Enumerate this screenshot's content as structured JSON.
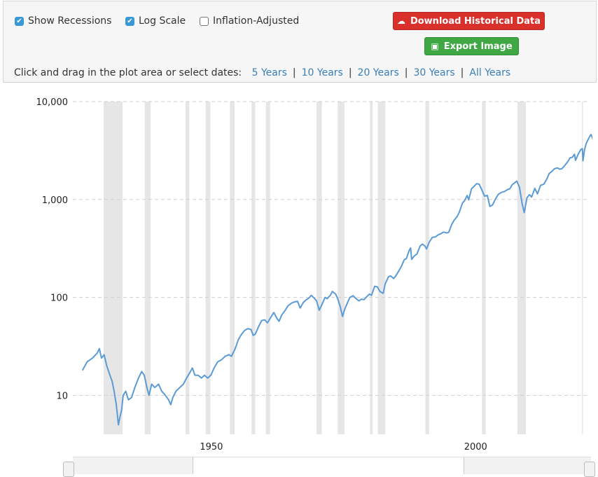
{
  "controls": {
    "show_recessions": {
      "label": "Show Recessions",
      "checked": true
    },
    "log_scale": {
      "label": "Log Scale",
      "checked": true
    },
    "inflation_adjusted": {
      "label": "Inflation-Adjusted",
      "checked": false
    },
    "download_label": "Download Historical Data",
    "export_label": "Export Image",
    "instruction": "Click and drag in the plot area or select dates:",
    "ranges": [
      "5 Years",
      "10 Years",
      "20 Years",
      "30 Years",
      "All Years"
    ],
    "colors": {
      "download": "#d9302c",
      "export": "#3fa845",
      "link": "#3a7fb8",
      "checkbox": "#3b98d6"
    }
  },
  "chart_data": {
    "type": "line",
    "title": "",
    "xlabel": "",
    "ylabel": "",
    "y_scale": "log",
    "ylim": [
      4,
      10000
    ],
    "xlim": [
      1925.5,
      2021.3
    ],
    "y_ticks": [
      10,
      100,
      1000,
      10000
    ],
    "y_tick_labels": [
      "10",
      "100",
      "1,000",
      "10,000"
    ],
    "x_ticks": [
      1950,
      2000
    ],
    "x_tick_labels": [
      "1950",
      "2000"
    ],
    "grid": true,
    "series_color": "#5b9bd5",
    "recession_color": "#e6e6e6",
    "recessions": [
      [
        1929.6,
        1933.2
      ],
      [
        1937.4,
        1938.5
      ],
      [
        1945.1,
        1945.8
      ],
      [
        1948.9,
        1949.8
      ],
      [
        1953.5,
        1954.4
      ],
      [
        1957.6,
        1958.3
      ],
      [
        1960.3,
        1961.1
      ],
      [
        1969.9,
        1970.9
      ],
      [
        1973.9,
        1975.2
      ],
      [
        1980.0,
        1980.5
      ],
      [
        1981.5,
        1982.9
      ],
      [
        1990.5,
        1991.2
      ],
      [
        2001.2,
        2001.9
      ],
      [
        2007.9,
        2009.5
      ],
      [
        2020.1,
        2020.3
      ]
    ],
    "series": [
      {
        "values": [
          [
            1925.6,
            18
          ],
          [
            1926.5,
            22
          ],
          [
            1927.5,
            24
          ],
          [
            1928.4,
            27
          ],
          [
            1928.8,
            30
          ],
          [
            1929.2,
            24
          ],
          [
            1929.7,
            26
          ],
          [
            1930.2,
            20
          ],
          [
            1930.8,
            16
          ],
          [
            1931.2,
            14
          ],
          [
            1931.6,
            11
          ],
          [
            1932.0,
            8
          ],
          [
            1932.4,
            5
          ],
          [
            1932.7,
            6
          ],
          [
            1933.0,
            7
          ],
          [
            1933.3,
            10
          ],
          [
            1933.8,
            11
          ],
          [
            1934.3,
            9
          ],
          [
            1934.9,
            9.5
          ],
          [
            1935.5,
            12
          ],
          [
            1936.2,
            15
          ],
          [
            1936.8,
            17.5
          ],
          [
            1937.3,
            16
          ],
          [
            1937.8,
            12
          ],
          [
            1938.2,
            10
          ],
          [
            1938.7,
            13
          ],
          [
            1939.3,
            12
          ],
          [
            1940.0,
            13
          ],
          [
            1940.6,
            11
          ],
          [
            1941.3,
            10
          ],
          [
            1941.9,
            9
          ],
          [
            1942.3,
            8
          ],
          [
            1942.7,
            9.5
          ],
          [
            1943.3,
            11
          ],
          [
            1944.0,
            12
          ],
          [
            1944.7,
            13
          ],
          [
            1945.3,
            15
          ],
          [
            1945.9,
            17
          ],
          [
            1946.4,
            19
          ],
          [
            1946.9,
            16
          ],
          [
            1947.5,
            16
          ],
          [
            1948.1,
            15
          ],
          [
            1948.7,
            16
          ],
          [
            1949.3,
            15
          ],
          [
            1949.9,
            16
          ],
          [
            1950.5,
            19
          ],
          [
            1951.2,
            22
          ],
          [
            1951.9,
            23
          ],
          [
            1952.6,
            25
          ],
          [
            1953.3,
            26
          ],
          [
            1953.8,
            25
          ],
          [
            1954.5,
            30
          ],
          [
            1955.1,
            37
          ],
          [
            1955.7,
            42
          ],
          [
            1956.3,
            46
          ],
          [
            1956.9,
            48
          ],
          [
            1957.5,
            47
          ],
          [
            1957.9,
            41
          ],
          [
            1958.3,
            42
          ],
          [
            1958.9,
            50
          ],
          [
            1959.5,
            58
          ],
          [
            1960.1,
            59
          ],
          [
            1960.6,
            55
          ],
          [
            1961.2,
            62
          ],
          [
            1961.8,
            70
          ],
          [
            1962.4,
            61
          ],
          [
            1962.8,
            57
          ],
          [
            1963.3,
            66
          ],
          [
            1963.9,
            73
          ],
          [
            1964.5,
            82
          ],
          [
            1965.1,
            87
          ],
          [
            1965.7,
            90
          ],
          [
            1966.3,
            91
          ],
          [
            1966.8,
            78
          ],
          [
            1967.4,
            89
          ],
          [
            1967.9,
            94
          ],
          [
            1968.5,
            99
          ],
          [
            1968.9,
            105
          ],
          [
            1969.4,
            99
          ],
          [
            1969.9,
            92
          ],
          [
            1970.4,
            74
          ],
          [
            1970.9,
            84
          ],
          [
            1971.5,
            100
          ],
          [
            1971.9,
            97
          ],
          [
            1972.5,
            105
          ],
          [
            1972.9,
            115
          ],
          [
            1973.5,
            108
          ],
          [
            1973.9,
            97
          ],
          [
            1974.4,
            80
          ],
          [
            1974.8,
            64
          ],
          [
            1975.2,
            75
          ],
          [
            1975.7,
            87
          ],
          [
            1976.2,
            100
          ],
          [
            1976.8,
            104
          ],
          [
            1977.3,
            98
          ],
          [
            1977.9,
            92
          ],
          [
            1978.4,
            96
          ],
          [
            1978.9,
            95
          ],
          [
            1979.5,
            103
          ],
          [
            1979.9,
            108
          ],
          [
            1980.3,
            105
          ],
          [
            1980.9,
            130
          ],
          [
            1981.4,
            128
          ],
          [
            1981.9,
            115
          ],
          [
            1982.5,
            110
          ],
          [
            1982.9,
            138
          ],
          [
            1983.5,
            162
          ],
          [
            1983.9,
            166
          ],
          [
            1984.5,
            156
          ],
          [
            1984.9,
            166
          ],
          [
            1985.5,
            188
          ],
          [
            1985.9,
            205
          ],
          [
            1986.5,
            243
          ],
          [
            1986.9,
            250
          ],
          [
            1987.4,
            300
          ],
          [
            1987.7,
            320
          ],
          [
            1987.9,
            245
          ],
          [
            1988.4,
            265
          ],
          [
            1988.9,
            278
          ],
          [
            1989.5,
            335
          ],
          [
            1989.9,
            350
          ],
          [
            1990.4,
            335
          ],
          [
            1990.7,
            312
          ],
          [
            1991.2,
            365
          ],
          [
            1991.8,
            410
          ],
          [
            1992.4,
            415
          ],
          [
            1992.9,
            435
          ],
          [
            1993.5,
            450
          ],
          [
            1993.9,
            465
          ],
          [
            1994.5,
            455
          ],
          [
            1994.9,
            462
          ],
          [
            1995.5,
            560
          ],
          [
            1995.9,
            610
          ],
          [
            1996.5,
            670
          ],
          [
            1996.9,
            740
          ],
          [
            1997.5,
            920
          ],
          [
            1997.9,
            970
          ],
          [
            1998.4,
            1100
          ],
          [
            1998.7,
            990
          ],
          [
            1999.2,
            1280
          ],
          [
            1999.7,
            1360
          ],
          [
            2000.2,
            1450
          ],
          [
            2000.7,
            1430
          ],
          [
            2001.2,
            1240
          ],
          [
            2001.7,
            1080
          ],
          [
            2002.2,
            1100
          ],
          [
            2002.7,
            850
          ],
          [
            2003.2,
            880
          ],
          [
            2003.7,
            1000
          ],
          [
            2004.3,
            1130
          ],
          [
            2004.9,
            1180
          ],
          [
            2005.5,
            1210
          ],
          [
            2005.9,
            1250
          ],
          [
            2006.5,
            1290
          ],
          [
            2006.9,
            1410
          ],
          [
            2007.5,
            1500
          ],
          [
            2007.8,
            1540
          ],
          [
            2008.3,
            1330
          ],
          [
            2008.8,
            900
          ],
          [
            2009.2,
            735
          ],
          [
            2009.7,
            1040
          ],
          [
            2010.2,
            1120
          ],
          [
            2010.6,
            1060
          ],
          [
            2011.2,
            1300
          ],
          [
            2011.7,
            1140
          ],
          [
            2012.3,
            1400
          ],
          [
            2012.9,
            1430
          ],
          [
            2013.5,
            1630
          ],
          [
            2013.9,
            1840
          ],
          [
            2014.5,
            1950
          ],
          [
            2014.9,
            2060
          ],
          [
            2015.5,
            2100
          ],
          [
            2015.9,
            2040
          ],
          [
            2016.3,
            2060
          ],
          [
            2016.8,
            2200
          ],
          [
            2017.4,
            2420
          ],
          [
            2017.9,
            2670
          ],
          [
            2018.3,
            2700
          ],
          [
            2018.7,
            2900
          ],
          [
            2018.9,
            2510
          ],
          [
            2019.4,
            2900
          ],
          [
            2019.9,
            3230
          ],
          [
            2020.2,
            3300
          ],
          [
            2020.3,
            2480
          ],
          [
            2020.6,
            3200
          ],
          [
            2020.9,
            3700
          ],
          [
            2021.2,
            4000
          ],
          [
            2021.5,
            4300
          ],
          [
            2021.8,
            4600
          ],
          [
            2022.0,
            4400
          ],
          [
            2022.4,
            3800
          ],
          [
            2022.8,
            3700
          ],
          [
            2023.1,
            4100
          ],
          [
            2023.6,
            4500
          ],
          [
            2023.9,
            4300
          ],
          [
            2024.3,
            4700
          ]
        ]
      }
    ]
  }
}
